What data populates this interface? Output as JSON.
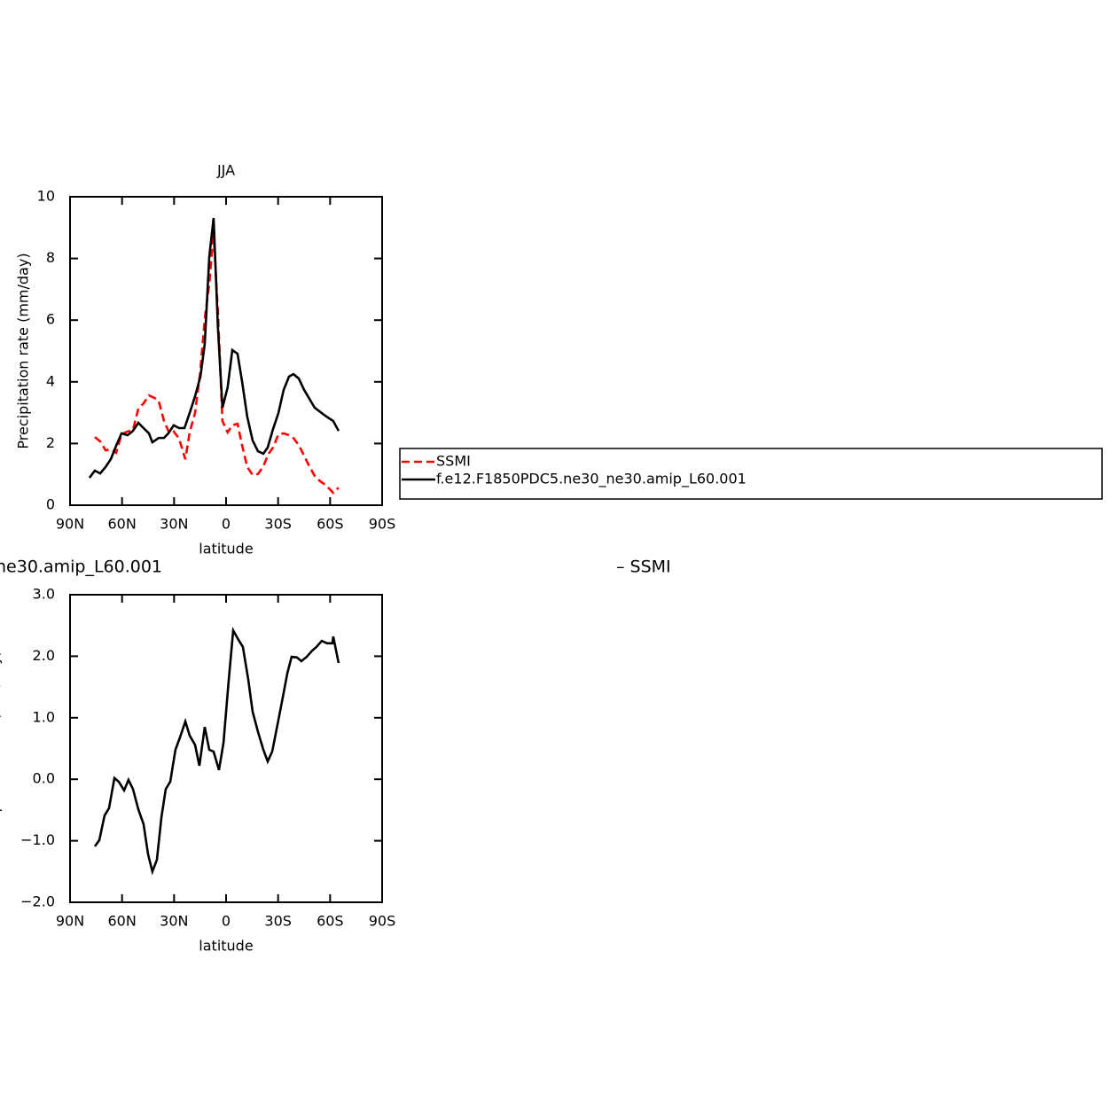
{
  "chart_data": [
    {
      "type": "line",
      "title": "JJA",
      "xlabel": "latitude",
      "ylabel": "Precipitation rate (mm/day)",
      "xlim": [
        90,
        -90
      ],
      "xticks": [
        {
          "value": 90,
          "label": "90N"
        },
        {
          "value": 60,
          "label": "60N"
        },
        {
          "value": 30,
          "label": "30N"
        },
        0,
        {
          "value": -30,
          "label": "30S"
        },
        {
          "value": -60,
          "label": "60S"
        },
        {
          "value": -90,
          "label": "90S"
        }
      ],
      "ylim": [
        0,
        10
      ],
      "yticks": [
        0,
        2,
        4,
        6,
        8,
        10
      ],
      "legend": "outside-right",
      "series": [
        {
          "name": "SSMI",
          "color": "#ff0000",
          "dashed": true,
          "x": [
            75.7,
            72.6,
            69.5,
            66.5,
            63.4,
            60.3,
            56.8,
            53.7,
            50.6,
            47.6,
            44.5,
            41.4,
            38.9,
            35.8,
            32.7,
            30.2,
            27.1,
            23.5,
            21.0,
            17.9,
            14.8,
            12.3,
            9.7,
            7.2,
            4.7,
            2.1,
            -0.9,
            -3.6,
            -6.6,
            -9.2,
            -12.2,
            -15.3,
            -18.4,
            -21.5,
            -24.5,
            -27.1,
            -30.2,
            -33.2,
            -36.3,
            -38.8,
            -41.9,
            -45.0,
            -48.0,
            -51.1,
            -54.2,
            -57.2,
            -60.3,
            -61.8,
            -64.9
          ],
          "values": [
            2.21,
            2.07,
            1.78,
            1.81,
            1.7,
            2.3,
            2.39,
            2.44,
            3.13,
            3.3,
            3.56,
            3.48,
            3.39,
            2.73,
            2.33,
            2.39,
            2.16,
            1.49,
            2.36,
            2.99,
            4.37,
            6.03,
            7.18,
            8.85,
            6.24,
            2.73,
            2.36,
            2.59,
            2.64,
            1.95,
            1.24,
            0.98,
            1.01,
            1.26,
            1.67,
            1.87,
            2.3,
            2.33,
            2.27,
            2.18,
            1.95,
            1.61,
            1.26,
            0.95,
            0.78,
            0.66,
            0.49,
            0.4,
            0.57
          ]
        },
        {
          "name": "f.e12.F1850PDC5.ne30_ne30.amip_L60.001",
          "color": "#000000",
          "dashed": false,
          "x": [
            78.8,
            75.7,
            72.6,
            69.5,
            66.5,
            63.4,
            60.3,
            56.8,
            53.7,
            50.6,
            47.6,
            44.5,
            42.5,
            38.9,
            35.8,
            33.3,
            30.2,
            27.1,
            24.0,
            21.0,
            17.9,
            14.8,
            12.3,
            9.7,
            7.2,
            4.7,
            2.1,
            -0.9,
            -3.6,
            -6.6,
            -9.2,
            -12.2,
            -15.3,
            -18.4,
            -21.5,
            -24.0,
            -27.1,
            -30.2,
            -33.2,
            -36.3,
            -38.8,
            -41.9,
            -45.0,
            -51.1,
            -57.2,
            -61.8,
            -64.9
          ],
          "values": [
            0.89,
            1.12,
            1.03,
            1.24,
            1.49,
            1.93,
            2.33,
            2.27,
            2.41,
            2.67,
            2.5,
            2.33,
            2.04,
            2.18,
            2.18,
            2.33,
            2.59,
            2.5,
            2.5,
            2.99,
            3.53,
            4.17,
            5.23,
            8.05,
            9.31,
            5.75,
            3.16,
            3.82,
            5.03,
            4.91,
            4.02,
            2.87,
            2.1,
            1.75,
            1.67,
            1.87,
            2.47,
            2.99,
            3.74,
            4.17,
            4.25,
            4.11,
            3.74,
            3.16,
            2.9,
            2.73,
            2.41
          ]
        }
      ]
    },
    {
      "type": "line",
      "title_parts": [
        "ne30.amip_L60.001",
        "– SSMI"
      ],
      "xlabel": "latitude",
      "ylabel": "Precipitation rate (mm/day)",
      "xlim": [
        90,
        -90
      ],
      "xticks": [
        {
          "value": 90,
          "label": "90N"
        },
        {
          "value": 60,
          "label": "60N"
        },
        {
          "value": 30,
          "label": "30N"
        },
        0,
        {
          "value": -30,
          "label": "30S"
        },
        {
          "value": -60,
          "label": "60S"
        },
        {
          "value": -90,
          "label": "90S"
        }
      ],
      "ylim": [
        -2,
        3
      ],
      "yticks": [
        {
          "value": -2,
          "label": "−2.0"
        },
        {
          "value": -1,
          "label": "−1.0"
        },
        {
          "value": 0,
          "label": "0.0"
        },
        {
          "value": 1,
          "label": "1.0"
        },
        {
          "value": 2,
          "label": "2.0"
        },
        {
          "value": 3,
          "label": "3.0"
        }
      ],
      "series": [
        {
          "color": "#000000",
          "dashed": false,
          "x": [
            75.7,
            73.1,
            70.1,
            67.5,
            64.4,
            61.9,
            58.8,
            56.3,
            53.7,
            50.6,
            47.6,
            45.0,
            42.5,
            39.9,
            37.3,
            34.8,
            32.2,
            29.2,
            26.6,
            23.5,
            21.0,
            17.9,
            15.4,
            12.3,
            9.7,
            7.2,
            4.1,
            1.5,
            -1.4,
            -4.1,
            -7.1,
            -9.7,
            -12.8,
            -15.3,
            -18.4,
            -21.5,
            -24.0,
            -26.6,
            -29.6,
            -32.7,
            -35.3,
            -37.8,
            -40.9,
            -43.4,
            -46.5,
            -49.6,
            -52.1,
            -55.2,
            -58.3,
            -61.3,
            -61.8,
            -64.9
          ],
          "values": [
            -1.09,
            -0.99,
            -0.59,
            -0.47,
            0.02,
            -0.04,
            -0.18,
            -0.01,
            -0.16,
            -0.49,
            -0.73,
            -1.22,
            -1.5,
            -1.31,
            -0.62,
            -0.16,
            -0.04,
            0.48,
            0.68,
            0.94,
            0.71,
            0.56,
            0.22,
            0.85,
            0.48,
            0.45,
            0.15,
            0.59,
            1.57,
            2.42,
            2.27,
            2.15,
            1.62,
            1.1,
            0.77,
            0.48,
            0.29,
            0.45,
            0.88,
            1.33,
            1.72,
            1.99,
            1.98,
            1.92,
            1.99,
            2.09,
            2.15,
            2.25,
            2.21,
            2.21,
            2.32,
            1.89
          ]
        }
      ]
    }
  ]
}
